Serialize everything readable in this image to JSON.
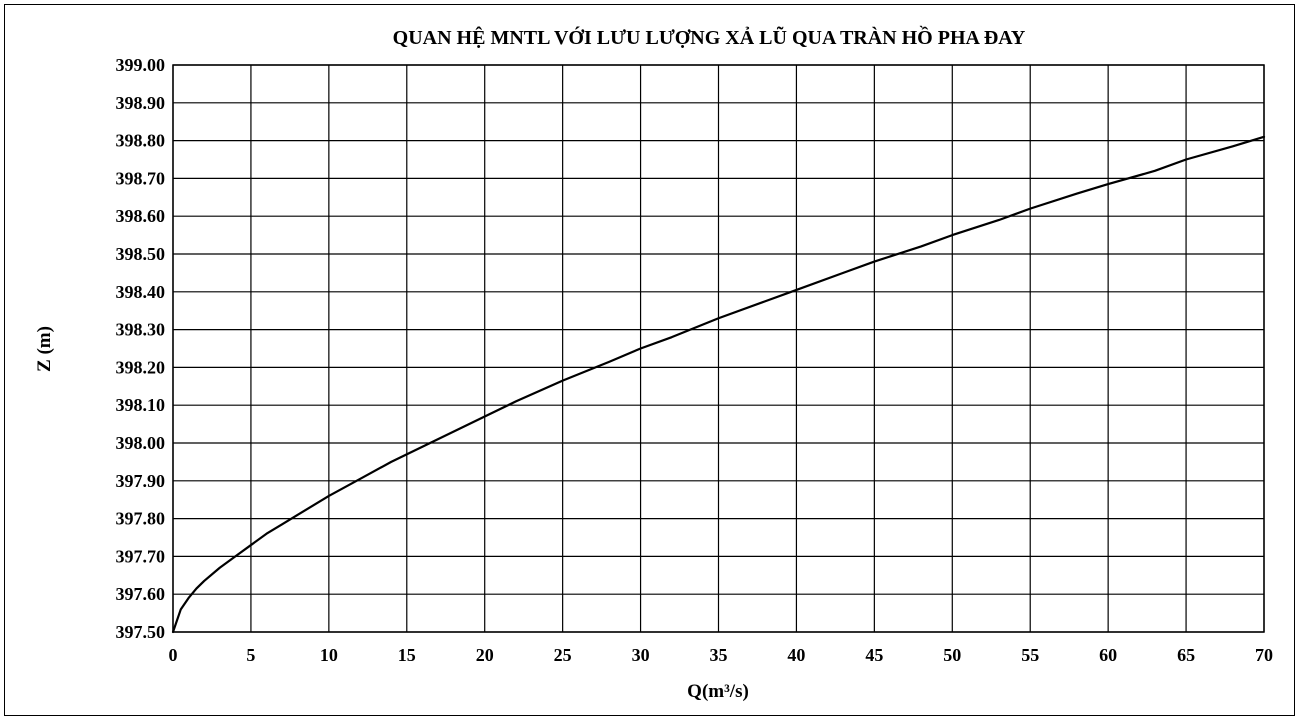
{
  "chart_data": {
    "type": "line",
    "title": "QUAN HỆ MNTL VỚI LƯU LƯỢNG XẢ LŨ QUA TRÀN HỒ PHA ĐAY",
    "xlabel": "Q(m³/s)",
    "ylabel": "Z (m)",
    "xlim": [
      0,
      70
    ],
    "ylim": [
      397.5,
      399.0
    ],
    "x_ticks": [
      "0",
      "5",
      "10",
      "15",
      "20",
      "25",
      "30",
      "35",
      "40",
      "45",
      "50",
      "55",
      "60",
      "65",
      "70"
    ],
    "y_ticks": [
      "397.50",
      "397.60",
      "397.70",
      "397.80",
      "397.90",
      "398.00",
      "398.10",
      "398.20",
      "398.30",
      "398.40",
      "398.50",
      "398.60",
      "398.70",
      "398.80",
      "398.90",
      "399.00"
    ],
    "grid": true,
    "legend": "none",
    "series": [
      {
        "color": "#000000",
        "x": [
          0,
          0.5,
          1,
          1.5,
          2,
          3,
          4,
          5,
          6,
          7,
          8,
          10,
          12,
          14,
          16,
          18,
          20,
          22,
          25,
          28,
          30,
          32,
          35,
          38,
          40,
          43,
          45,
          48,
          50,
          53,
          55,
          58,
          60,
          63,
          65,
          68,
          70
        ],
        "y": [
          397.5,
          397.56,
          397.59,
          397.615,
          397.635,
          397.67,
          397.7,
          397.73,
          397.76,
          397.785,
          397.81,
          397.86,
          397.905,
          397.95,
          397.99,
          398.03,
          398.07,
          398.11,
          398.165,
          398.215,
          398.25,
          398.28,
          398.33,
          398.375,
          398.405,
          398.45,
          398.48,
          398.52,
          398.55,
          398.59,
          398.62,
          398.66,
          398.685,
          398.72,
          398.75,
          398.785,
          398.81
        ]
      }
    ]
  }
}
